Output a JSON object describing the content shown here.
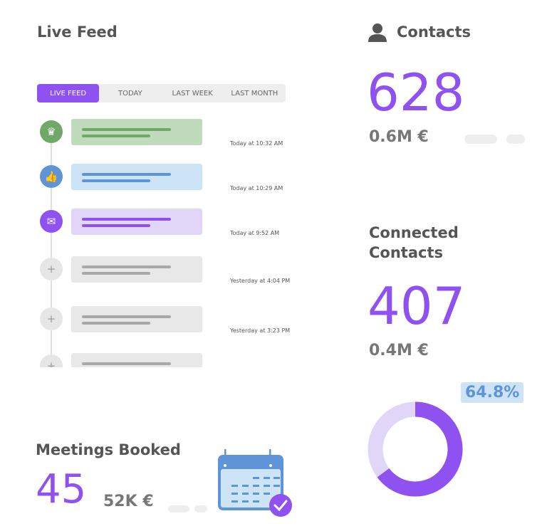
{
  "live_feed": {
    "title": "Live Feed",
    "tabs": [
      "LIVE FEED",
      "TODAY",
      "LAST WEEK",
      "LAST MONTH"
    ],
    "active_tab": 0,
    "items": [
      {
        "icon": "crown-icon",
        "color": "#6fa867",
        "card": "#c0dbbc",
        "bar": "#6fa867",
        "time": "Today at 10:32 AM"
      },
      {
        "icon": "thumbs-up-icon",
        "color": "#5f95d8",
        "card": "#cde3f6",
        "bar": "#5f95d8",
        "time": "Today at 10:29 AM"
      },
      {
        "icon": "mail-icon",
        "color": "#8f52f0",
        "card": "#e2d6f8",
        "bar": "#8f52f0",
        "time": "Today at 9:52 AM"
      },
      {
        "icon": "plus-icon",
        "color": "#e6e6e6",
        "card": "#e8e8e8",
        "bar": "#a8a8a8",
        "time": "Yesterday at 4:04 PM"
      },
      {
        "icon": "plus-icon",
        "color": "#e6e6e6",
        "card": "#e8e8e8",
        "bar": "#a8a8a8",
        "time": "Yesterday at 3:23 PM"
      },
      {
        "icon": "plus-icon",
        "color": "#e6e6e6",
        "card": "#e8e8e8",
        "bar": "#a8a8a8",
        "time": ""
      }
    ]
  },
  "contacts": {
    "title": "Contacts",
    "count": "628",
    "value": "0.6M €"
  },
  "connected": {
    "title_line1": "Connected",
    "title_line2": "Contacts",
    "count": "407",
    "value": "0.4M €",
    "percent_label": "64.8%",
    "percent": 64.8
  },
  "meetings": {
    "title": "Meetings Booked",
    "count": "45",
    "value": "52K €"
  },
  "colors": {
    "accent": "#8f52f0",
    "accent_light": "#e2d6f8",
    "blue": "#5f95d8"
  }
}
